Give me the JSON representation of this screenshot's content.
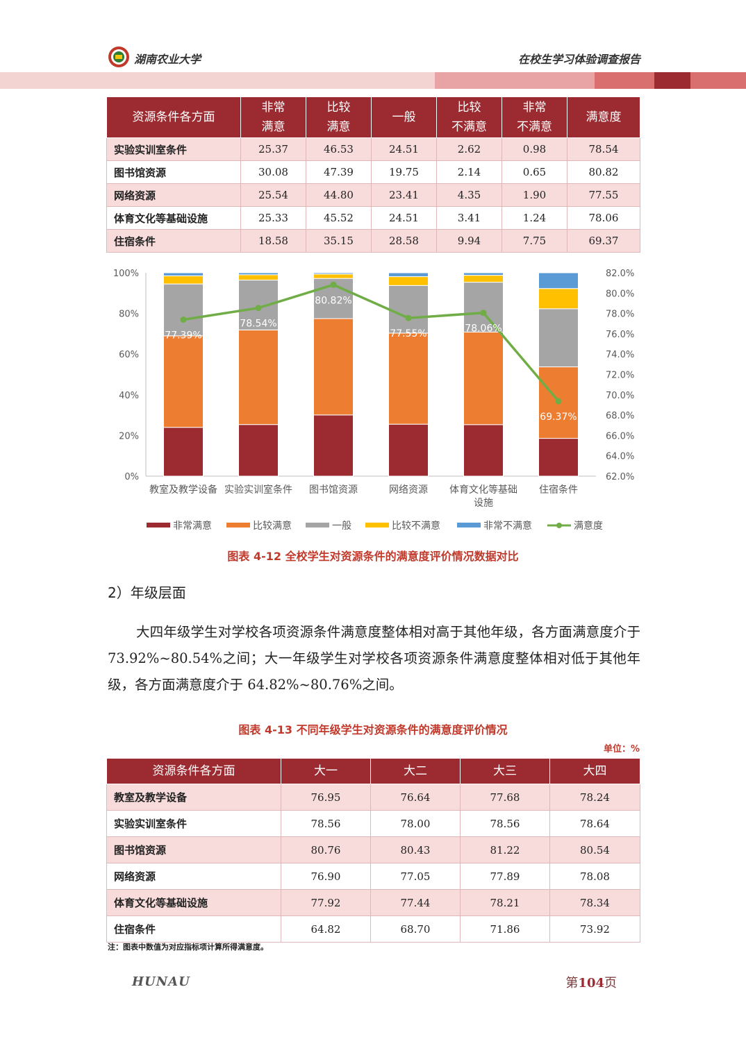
{
  "header": {
    "school": "湖南农业大学",
    "report": "在校生学习体验调查报告"
  },
  "table1": {
    "headers": [
      "资源条件各方面",
      "非常\n满意",
      "比较\n满意",
      "一般",
      "比较\n不满意",
      "非常\n不满意",
      "满意度"
    ],
    "rows": [
      [
        "实验实训室条件",
        "25.37",
        "46.53",
        "24.51",
        "2.62",
        "0.98",
        "78.54"
      ],
      [
        "图书馆资源",
        "30.08",
        "47.39",
        "19.75",
        "2.14",
        "0.65",
        "80.82"
      ],
      [
        "网络资源",
        "25.54",
        "44.80",
        "23.41",
        "4.35",
        "1.90",
        "77.55"
      ],
      [
        "体育文化等基础设施",
        "25.33",
        "45.52",
        "24.51",
        "3.41",
        "1.24",
        "78.06"
      ],
      [
        "住宿条件",
        "18.58",
        "35.15",
        "28.58",
        "9.94",
        "7.75",
        "69.37"
      ]
    ]
  },
  "chart_data": {
    "type": "bar",
    "stacked": true,
    "categories": [
      "教室及教学设备",
      "实验实训室条件",
      "图书馆资源",
      "网络资源",
      "体育文化等基础设施",
      "住宿条件"
    ],
    "category_lines": [
      [
        "教室及教学设备"
      ],
      [
        "实验实训室条件"
      ],
      [
        "图书馆资源"
      ],
      [
        "网络资源"
      ],
      [
        "体育文化等基础",
        "设施"
      ],
      [
        "住宿条件"
      ]
    ],
    "series": [
      {
        "name": "非常满意",
        "color": "#9b2b30",
        "values": [
          24.0,
          25.37,
          30.08,
          25.54,
          25.33,
          18.58
        ]
      },
      {
        "name": "比较满意",
        "color": "#ed7d31",
        "values": [
          45.0,
          46.53,
          47.39,
          44.8,
          45.52,
          35.15
        ]
      },
      {
        "name": "一般",
        "color": "#a5a5a5",
        "values": [
          25.5,
          24.51,
          19.75,
          23.41,
          24.51,
          28.58
        ]
      },
      {
        "name": "比较不满意",
        "color": "#ffc000",
        "values": [
          4.0,
          2.62,
          2.14,
          4.35,
          3.41,
          9.94
        ]
      },
      {
        "name": "非常不满意",
        "color": "#5b9bd5",
        "values": [
          1.5,
          0.98,
          0.65,
          1.9,
          1.24,
          7.75
        ]
      }
    ],
    "line": {
      "name": "满意度",
      "color": "#70ad47",
      "values": [
        77.39,
        78.54,
        80.82,
        77.55,
        78.06,
        69.37
      ],
      "labels": [
        "77.39%",
        "78.54%",
        "80.82%",
        "77.55%",
        "78.06%",
        "69.37%"
      ]
    },
    "y_left": {
      "min": 0,
      "max": 100,
      "ticks": [
        "0%",
        "20%",
        "40%",
        "60%",
        "80%",
        "100%"
      ]
    },
    "y_right": {
      "min": 62,
      "max": 82,
      "ticks": [
        "62.0%",
        "64.0%",
        "66.0%",
        "68.0%",
        "70.0%",
        "72.0%",
        "74.0%",
        "76.0%",
        "78.0%",
        "80.0%",
        "82.0%"
      ]
    },
    "legend": "bottom"
  },
  "caption1": "图表 4-12 全校学生对资源条件的满意度评价情况数据对比",
  "section2": "2）年级层面",
  "paragraph": "大四年级学生对学校各项资源条件满意度整体相对高于其他年级，各方面满意度介于 73.92%~80.54%之间；大一年级学生对学校各项资源条件满意度整体相对低于其他年级，各方面满意度介于 64.82%~80.76%之间。",
  "caption2": "图表 4-13 不同年级学生对资源条件的满意度评价情况",
  "unit": "单位：%",
  "table2": {
    "headers": [
      "资源条件各方面",
      "大一",
      "大二",
      "大三",
      "大四"
    ],
    "rows": [
      [
        "教室及教学设备",
        "76.95",
        "76.64",
        "77.68",
        "78.24"
      ],
      [
        "实验实训室条件",
        "78.56",
        "78.00",
        "78.56",
        "78.64"
      ],
      [
        "图书馆资源",
        "80.76",
        "80.43",
        "81.22",
        "80.54"
      ],
      [
        "网络资源",
        "76.90",
        "77.05",
        "77.89",
        "78.08"
      ],
      [
        "体育文化等基础设施",
        "77.92",
        "77.44",
        "78.21",
        "78.34"
      ],
      [
        "住宿条件",
        "64.82",
        "68.70",
        "71.86",
        "73.92"
      ]
    ]
  },
  "note": "注：图表中数值为对应指标项计算所得满意度。",
  "footer": {
    "brand": "HUNAU",
    "page_prefix": "第",
    "page_number": "104",
    "page_suffix": "页"
  }
}
